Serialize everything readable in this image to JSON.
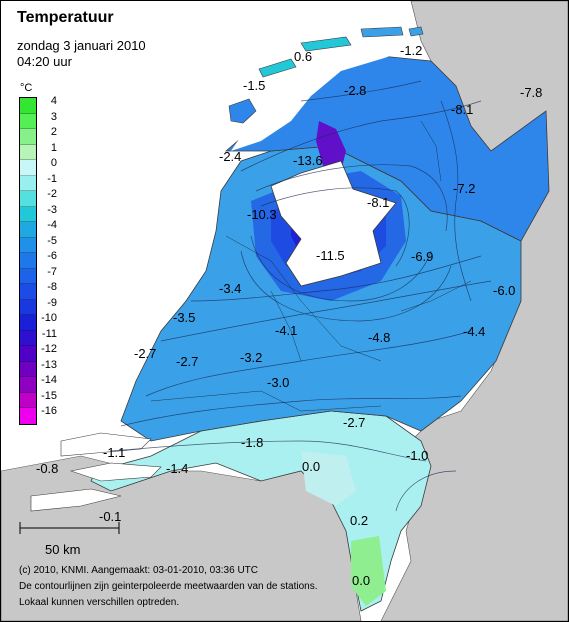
{
  "header": {
    "title": "Temperatuur",
    "subtitle": "zondag 3 januari 2010",
    "time": "04:20 uur"
  },
  "legend": {
    "unit": "°C",
    "ticks": [
      "4",
      "3",
      "2",
      "1",
      "0",
      "-1",
      "-2",
      "-3",
      "-4",
      "-5",
      "-6",
      "-7",
      "-8",
      "-9",
      "-10",
      "-11",
      "-12",
      "-13",
      "-14",
      "-15",
      "-16"
    ],
    "colors": [
      "#33e633",
      "#55ee55",
      "#88f088",
      "#b8f4b8",
      "#c8f7f7",
      "#99eeee",
      "#55e0e0",
      "#22c8d8",
      "#20a8e0",
      "#2090e8",
      "#1f78ea",
      "#1e62ea",
      "#1c4ce6",
      "#1a38e0",
      "#1a20d8",
      "#3010d0",
      "#5000c8",
      "#7000c0",
      "#9000c0",
      "#c000c8",
      "#ee00ee"
    ]
  },
  "stations": [
    {
      "text": "0.6"
    },
    {
      "text": "-1.2"
    },
    {
      "text": "-1.5"
    },
    {
      "text": "-2.8"
    },
    {
      "text": "-8.1"
    },
    {
      "text": "-7.8"
    },
    {
      "text": "-2.4"
    },
    {
      "text": "-13.6"
    },
    {
      "text": "-7.2"
    },
    {
      "text": "-10.3"
    },
    {
      "text": "-8.1"
    },
    {
      "text": "-11.5"
    },
    {
      "text": "-6.9"
    },
    {
      "text": "-3.4"
    },
    {
      "text": "-6.0"
    },
    {
      "text": "-3.5"
    },
    {
      "text": "-4.1"
    },
    {
      "text": "-4.8"
    },
    {
      "text": "-4.4"
    },
    {
      "text": "-2.7"
    },
    {
      "text": "-2.7"
    },
    {
      "text": "-3.2"
    },
    {
      "text": "-3.0"
    },
    {
      "text": "-2.7"
    },
    {
      "text": "-1.8"
    },
    {
      "text": "-1.1"
    },
    {
      "text": "-1.0"
    },
    {
      "text": "0.0"
    },
    {
      "text": "-0.8"
    },
    {
      "text": "-1.4"
    },
    {
      "text": "-0.1"
    },
    {
      "text": "0.2"
    },
    {
      "text": "0.0"
    }
  ],
  "scale": {
    "label": "50 km"
  },
  "footer": {
    "line1": "(c) 2010, KNMI. Aangemaakt: 03-01-2010, 03:36 UTC",
    "line2": "De contourlijnen zijn geinterpoleerde meetwaarden van de stations.",
    "line3": "Lokaal kunnen verschillen optreden."
  },
  "colors": {
    "sea": "#ffffff",
    "land_outside": "#c8c8c8",
    "cold_core": "#2a1ad0",
    "warm_south": "#b8f0f0"
  }
}
